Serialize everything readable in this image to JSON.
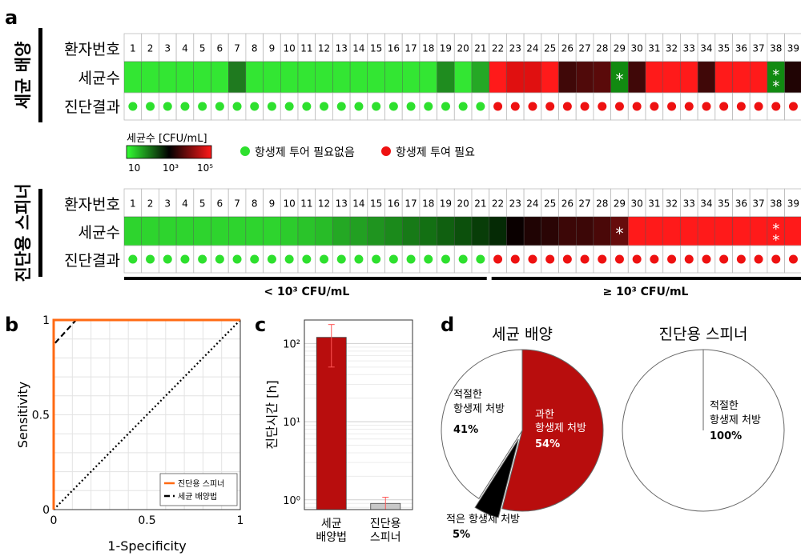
{
  "panels": {
    "a": "a",
    "b": "b",
    "c": "c",
    "d": "d"
  },
  "panel_a": {
    "section1_label": "세균 배양",
    "section2_label": "진단용 스피너",
    "row_labels": {
      "patient": "환자번호",
      "count": "세균수",
      "result": "진단결과"
    },
    "patients": [
      "1",
      "2",
      "3",
      "4",
      "5",
      "6",
      "7",
      "8",
      "9",
      "10",
      "11",
      "12",
      "13",
      "14",
      "15",
      "16",
      "17",
      "18",
      "19",
      "20",
      "21",
      "22",
      "23",
      "24",
      "25",
      "26",
      "27",
      "28",
      "29",
      "30",
      "31",
      "32",
      "33",
      "34",
      "35",
      "36",
      "37",
      "38",
      "39"
    ],
    "culture_colors": [
      "#33e633",
      "#33e633",
      "#33e633",
      "#33e633",
      "#33e633",
      "#33e633",
      "#1f7a1f",
      "#33e633",
      "#33e633",
      "#33e633",
      "#33e633",
      "#33e633",
      "#33e633",
      "#33e633",
      "#33e633",
      "#33e633",
      "#33e633",
      "#33e633",
      "#1f8c1f",
      "#33e633",
      "#25a825",
      "#ff1a1a",
      "#e01010",
      "#e01010",
      "#ff1a1a",
      "#400808",
      "#500a0a",
      "#5a0a0a",
      "#118a11",
      "#400808",
      "#ff1a1a",
      "#ff1a1a",
      "#ff1a1a",
      "#400808",
      "#ff1a1a",
      "#ff1a1a",
      "#ff1a1a",
      "#118a11",
      "#200404"
    ],
    "culture_results": [
      "g",
      "g",
      "g",
      "g",
      "g",
      "g",
      "g",
      "g",
      "g",
      "g",
      "g",
      "g",
      "g",
      "g",
      "g",
      "g",
      "g",
      "g",
      "g",
      "g",
      "g",
      "r",
      "r",
      "r",
      "r",
      "r",
      "r",
      "r",
      "r",
      "r",
      "r",
      "r",
      "r",
      "r",
      "r",
      "r",
      "r",
      "r",
      "r"
    ],
    "spinner_colors": [
      "#2ed42e",
      "#2ed42e",
      "#2ed42e",
      "#2ed42e",
      "#2ed42e",
      "#2ed42e",
      "#2ed42e",
      "#2ed42e",
      "#2ed42e",
      "#2ccc2c",
      "#2ac42a",
      "#28bc28",
      "#24a824",
      "#22a022",
      "#1f941f",
      "#1b8a1b",
      "#177a17",
      "#137013",
      "#106010",
      "#0c500c",
      "#083d08",
      "#052a05",
      "#0a0000",
      "#200404",
      "#2a0505",
      "#3c0707",
      "#3c0707",
      "#4a0808",
      "#660c0c",
      "#ff1a1a",
      "#ff1a1a",
      "#ff1a1a",
      "#ff1a1a",
      "#ff1a1a",
      "#ff1a1a",
      "#ff1a1a",
      "#ff1a1a",
      "#ff1a1a",
      "#ff1a1a"
    ],
    "spinner_results": [
      "g",
      "g",
      "g",
      "g",
      "g",
      "g",
      "g",
      "g",
      "g",
      "g",
      "g",
      "g",
      "g",
      "g",
      "g",
      "g",
      "g",
      "g",
      "g",
      "g",
      "g",
      "r",
      "r",
      "r",
      "r",
      "r",
      "r",
      "r",
      "r",
      "r",
      "r",
      "r",
      "r",
      "r",
      "r",
      "r",
      "r",
      "r",
      "r"
    ],
    "star_marks": [
      {
        "patient": "29",
        "text": "*"
      },
      {
        "patient": "38",
        "text": "**"
      }
    ],
    "colorbar": {
      "title": "세균수 [CFU/mL]",
      "ticks": [
        "10",
        "10³",
        "10⁵"
      ],
      "colors": [
        "#33ff33",
        "#000000",
        "#ff1a1a"
      ]
    },
    "legend": {
      "green": "항생제 투어 필요없음",
      "red": "항생제 투여 필요",
      "green_color": "#2ee02e",
      "red_color": "#ee1111"
    },
    "threshold_low": "< 10³ CFU/mL",
    "threshold_high": "≥ 10³ CFU/mL",
    "split_after_patient": "21"
  },
  "chart_data": [
    {
      "type": "line",
      "title": "",
      "xlabel": "1-Specificity",
      "ylabel": "Sensitivity",
      "xlim": [
        0,
        1
      ],
      "ylim": [
        0,
        1
      ],
      "x_ticks": [
        "0",
        "0.5",
        "1"
      ],
      "y_ticks": [
        "0",
        "0.5",
        "1"
      ],
      "grid": true,
      "legend_position": "bottom-right",
      "series": [
        {
          "name": "진단용 스피너",
          "color": "#ff6a13",
          "style": "solid",
          "points": [
            [
              0,
              0
            ],
            [
              0,
              1
            ],
            [
              1,
              1
            ]
          ]
        },
        {
          "name": "세균 배양법",
          "color": "#000000",
          "style": "dashed",
          "points": [
            [
              0,
              0
            ],
            [
              0,
              0.87
            ],
            [
              0.12,
              1
            ],
            [
              1,
              1
            ]
          ]
        },
        {
          "name": "",
          "color": "#000000",
          "style": "dotted",
          "points": [
            [
              0,
              0
            ],
            [
              1,
              1
            ]
          ]
        }
      ]
    },
    {
      "type": "bar",
      "ylabel": "진단시간 [h]",
      "y_scale": "log",
      "ylim": [
        0.75,
        200
      ],
      "y_ticks": [
        "10⁰",
        "10¹",
        "10²"
      ],
      "grid": true,
      "categories": [
        "세균 배양법",
        "진단용 스피너"
      ],
      "category_lines": [
        [
          "세균",
          "배양법"
        ],
        [
          "진단용",
          "스피너"
        ]
      ],
      "values": [
        120,
        0.9
      ],
      "error_low": [
        50,
        0.75
      ],
      "error_high": [
        175,
        1.08
      ],
      "colors": [
        "#b80d0d",
        "#c8c8c8"
      ]
    },
    {
      "type": "pie",
      "title": "세균 배양",
      "slices": [
        {
          "label_lines": [
            "과한",
            "항생제 처방"
          ],
          "pct_label": "54%",
          "value": 54,
          "color": "#b80d0d"
        },
        {
          "label_lines": [
            "적은 항생제 처방"
          ],
          "pct_label": "5%",
          "value": 5,
          "color": "#000000"
        },
        {
          "label_lines": [
            "적절한",
            "항생제 처방"
          ],
          "pct_label": "41%",
          "value": 41,
          "color": "#ffffff"
        }
      ]
    },
    {
      "type": "pie",
      "title": "진단용 스피너",
      "slices": [
        {
          "label_lines": [
            "적절한",
            "항생제 처방"
          ],
          "pct_label": "100%",
          "value": 100,
          "color": "#ffffff"
        }
      ]
    }
  ]
}
